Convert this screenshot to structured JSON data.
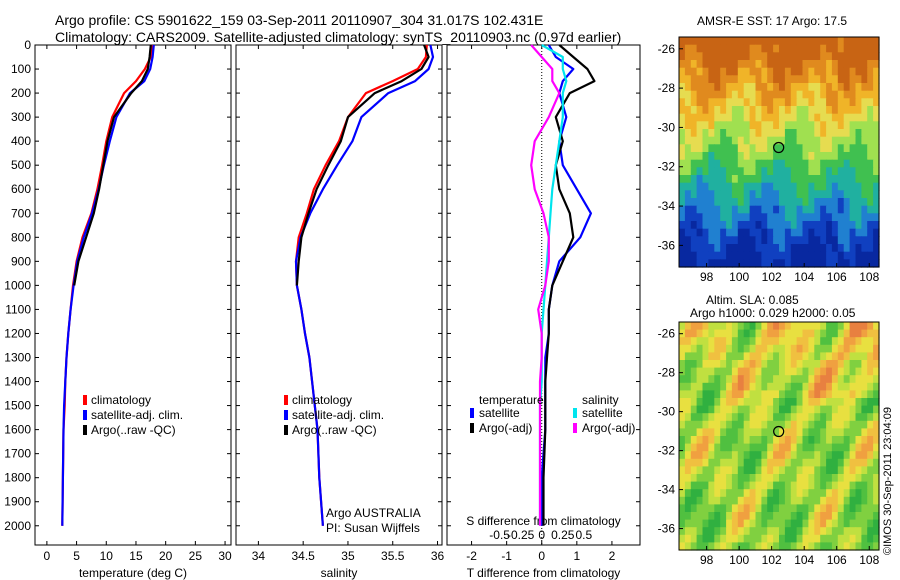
{
  "header": {
    "line1": "Argo profile: CS 5901622_159 03-Sep-2011 20110907_304 31.017S 102.431E",
    "line2": "Climatology: CARS2009. Satellite-adjusted climatology: synTS_20110903.nc (0.97d earlier)"
  },
  "right_panels": {
    "sst_title": "AMSR-E SST: 17 Argo: 17.5",
    "sla_title_1": "Altim. SLA: 0.085",
    "sla_title_2": "Argo h1000: 0.029 h2000: 0.05",
    "stamp": "©IMOS 30-Sep-2011 23:04:09"
  },
  "colors": {
    "climatology": "#ff0000",
    "satellite": "#0000ff",
    "argo": "#000000",
    "salinity_sat": "#00e5ee",
    "salinity_argo": "#ff00ff"
  },
  "chart_data": [
    {
      "type": "line",
      "xlabel": "temperature (deg C)",
      "ylabel": "",
      "xlim": [
        -2,
        31
      ],
      "ylim": [
        2080,
        0
      ],
      "xticks": [
        0,
        5,
        10,
        15,
        20,
        25,
        30
      ],
      "yticks": [
        0,
        100,
        200,
        300,
        400,
        500,
        600,
        700,
        800,
        900,
        1000,
        1100,
        1200,
        1300,
        1400,
        1500,
        1600,
        1700,
        1800,
        1900,
        2000
      ],
      "legend_placement": "bottom-center",
      "series": [
        {
          "name": "climatology",
          "color": "#ff0000",
          "x": [
            17.8,
            17.5,
            16.5,
            15,
            13,
            11,
            10,
            9.3,
            8.5,
            7.5,
            6,
            5,
            4.4,
            4,
            3.6,
            3.3,
            3.1,
            3,
            2.8,
            2.7,
            2.6
          ],
          "y": [
            0,
            50,
            100,
            150,
            200,
            300,
            400,
            500,
            600,
            700,
            800,
            900,
            1000,
            1100,
            1200,
            1300,
            1400,
            1500,
            1600,
            1800,
            2000
          ]
        },
        {
          "name": "satellite-adj. clim.",
          "color": "#0000ff",
          "x": [
            18,
            17.8,
            17.4,
            16.4,
            14,
            11.7,
            10.6,
            9.6,
            8.7,
            7.6,
            6.2,
            5.1,
            4.5,
            4,
            3.6,
            3.3,
            3.1,
            2.9,
            2.8,
            2.7,
            2.6
          ],
          "y": [
            0,
            50,
            100,
            150,
            200,
            300,
            400,
            500,
            600,
            700,
            800,
            900,
            1000,
            1100,
            1200,
            1300,
            1400,
            1500,
            1600,
            1800,
            2000
          ]
        },
        {
          "name": "Argo(..raw -QC)",
          "color": "#000000",
          "x": [
            17.5,
            17.3,
            17,
            16,
            14.2,
            11.3,
            10.2,
            9.5,
            8.8,
            7.9,
            6.6,
            5.3,
            4.6
          ],
          "y": [
            0,
            50,
            100,
            150,
            200,
            300,
            400,
            500,
            600,
            700,
            800,
            900,
            1000
          ]
        }
      ]
    },
    {
      "type": "line",
      "xlabel": "salinity",
      "ylabel": "",
      "xlim": [
        33.75,
        36.05
      ],
      "ylim": [
        2080,
        0
      ],
      "xticks": [
        34,
        34.5,
        35,
        35.5,
        36
      ],
      "legend_placement": "bottom-center",
      "annotation": [
        "Argo AUSTRALIA",
        "PI: Susan Wijffels"
      ],
      "series": [
        {
          "name": "climatology",
          "color": "#ff0000",
          "x": [
            35.88,
            35.87,
            35.78,
            35.5,
            35.2,
            35.0,
            34.9,
            34.75,
            34.62,
            34.54,
            34.45,
            34.42,
            34.43,
            34.48,
            34.52,
            34.57,
            34.6,
            34.63,
            34.66,
            34.68,
            34.72
          ],
          "y": [
            0,
            50,
            100,
            150,
            200,
            300,
            400,
            500,
            600,
            700,
            800,
            900,
            1000,
            1100,
            1200,
            1300,
            1400,
            1500,
            1600,
            1800,
            2000
          ]
        },
        {
          "name": "satellite-adj. clim.",
          "color": "#0000ff",
          "x": [
            35.92,
            35.95,
            35.9,
            35.75,
            35.45,
            35.15,
            35.05,
            34.88,
            34.72,
            34.58,
            34.47,
            34.42,
            34.43,
            34.48,
            34.52,
            34.57,
            34.6,
            34.63,
            34.66,
            34.68,
            34.72
          ],
          "y": [
            0,
            50,
            100,
            150,
            200,
            300,
            400,
            500,
            600,
            700,
            800,
            900,
            1000,
            1100,
            1200,
            1300,
            1400,
            1500,
            1600,
            1800,
            2000
          ]
        },
        {
          "name": "Argo(..raw -QC)",
          "color": "#000000",
          "x": [
            35.85,
            35.9,
            35.82,
            35.6,
            35.3,
            35.0,
            34.92,
            34.78,
            34.65,
            34.56,
            34.48,
            34.45,
            34.43
          ],
          "y": [
            0,
            50,
            100,
            150,
            200,
            300,
            400,
            500,
            600,
            700,
            800,
            900,
            1000
          ]
        }
      ]
    },
    {
      "type": "line",
      "xlabel": "T difference from climatology",
      "top_axis_label": "S difference from climatology",
      "xlim": [
        -2.7,
        2.8
      ],
      "ylim": [
        2080,
        0
      ],
      "xticks": [
        -2,
        -1,
        0,
        1,
        2
      ],
      "top_xticks": [
        "-0.5",
        "-0.25",
        "0",
        "0.25",
        "0.5"
      ],
      "legend_titles": [
        "temperature",
        "salinity"
      ],
      "legend_placement": "bottom",
      "series": [
        {
          "name": "satellite",
          "group": "temperature",
          "color": "#0000ff",
          "x": [
            0.2,
            0.4,
            0.9,
            0.6,
            0.5,
            0.7,
            0.5,
            0.6,
            1.0,
            1.4,
            1.1,
            0.5,
            0.3,
            0.2,
            0.2,
            0.1,
            0.1,
            0.1,
            0.1,
            0.0,
            0.0
          ],
          "y": [
            0,
            50,
            100,
            150,
            200,
            300,
            400,
            500,
            600,
            700,
            800,
            900,
            1000,
            1100,
            1200,
            1300,
            1400,
            1500,
            1600,
            1800,
            2000
          ]
        },
        {
          "name": "Argo(-adj)",
          "group": "temperature",
          "color": "#000000",
          "x": [
            0.5,
            0.9,
            1.3,
            1.5,
            0.8,
            0.4,
            0.6,
            0.4,
            0.5,
            0.8,
            0.9,
            0.6,
            0.3,
            0.2,
            0.2,
            0.15,
            0.1,
            0.1,
            0.1,
            0.05,
            0.05
          ],
          "y": [
            0,
            50,
            100,
            150,
            200,
            300,
            400,
            500,
            600,
            700,
            800,
            900,
            1000,
            1100,
            1200,
            1300,
            1400,
            1500,
            1600,
            1800,
            2000
          ]
        },
        {
          "name": "satellite",
          "group": "salinity",
          "color": "#00e5ee",
          "x": [
            0.0,
            0.6,
            0.6,
            0.7,
            0.6,
            0.6,
            0.5,
            0.4,
            0.3,
            0.25,
            0.2,
            0.15,
            0.1,
            0.05,
            0.0,
            0.0,
            0.0,
            -0.05,
            -0.05,
            -0.05,
            -0.05
          ],
          "y": [
            0,
            50,
            100,
            150,
            200,
            300,
            400,
            500,
            600,
            700,
            800,
            900,
            1000,
            1100,
            1200,
            1300,
            1400,
            1500,
            1600,
            1800,
            2000
          ]
        },
        {
          "name": "Argo(-adj)",
          "group": "salinity",
          "color": "#ff00ff",
          "x": [
            -0.3,
            0.0,
            0.3,
            0.3,
            0.5,
            0.2,
            -0.2,
            -0.3,
            -0.2,
            0.05,
            0.2,
            0.2,
            0.1,
            -0.1,
            0.0,
            0.0,
            -0.05,
            -0.05,
            -0.05,
            -0.05,
            -0.05
          ],
          "y": [
            0,
            50,
            100,
            150,
            200,
            300,
            400,
            500,
            600,
            700,
            800,
            900,
            1000,
            1100,
            1200,
            1300,
            1400,
            1500,
            1600,
            1800,
            2000
          ]
        }
      ]
    },
    {
      "type": "heatmap",
      "title": "AMSR-E SST: 17 Argo: 17.5",
      "xlim": [
        96.3,
        108.6
      ],
      "ylim": [
        -37.1,
        -25.4
      ],
      "xticks": [
        98,
        100,
        102,
        104,
        106,
        108
      ],
      "yticks": [
        -26,
        -28,
        -30,
        -32,
        -34,
        -36
      ],
      "marker": {
        "x": 102.43,
        "y": -31.02
      }
    },
    {
      "type": "heatmap",
      "title": "Altim. SLA: 0.085 / Argo h1000: 0.029 h2000: 0.05",
      "xlim": [
        96.3,
        108.6
      ],
      "ylim": [
        -37.1,
        -25.4
      ],
      "xticks": [
        98,
        100,
        102,
        104,
        106,
        108
      ],
      "yticks": [
        -26,
        -28,
        -30,
        -32,
        -34,
        -36
      ],
      "marker": {
        "x": 102.43,
        "y": -31.02
      }
    }
  ]
}
